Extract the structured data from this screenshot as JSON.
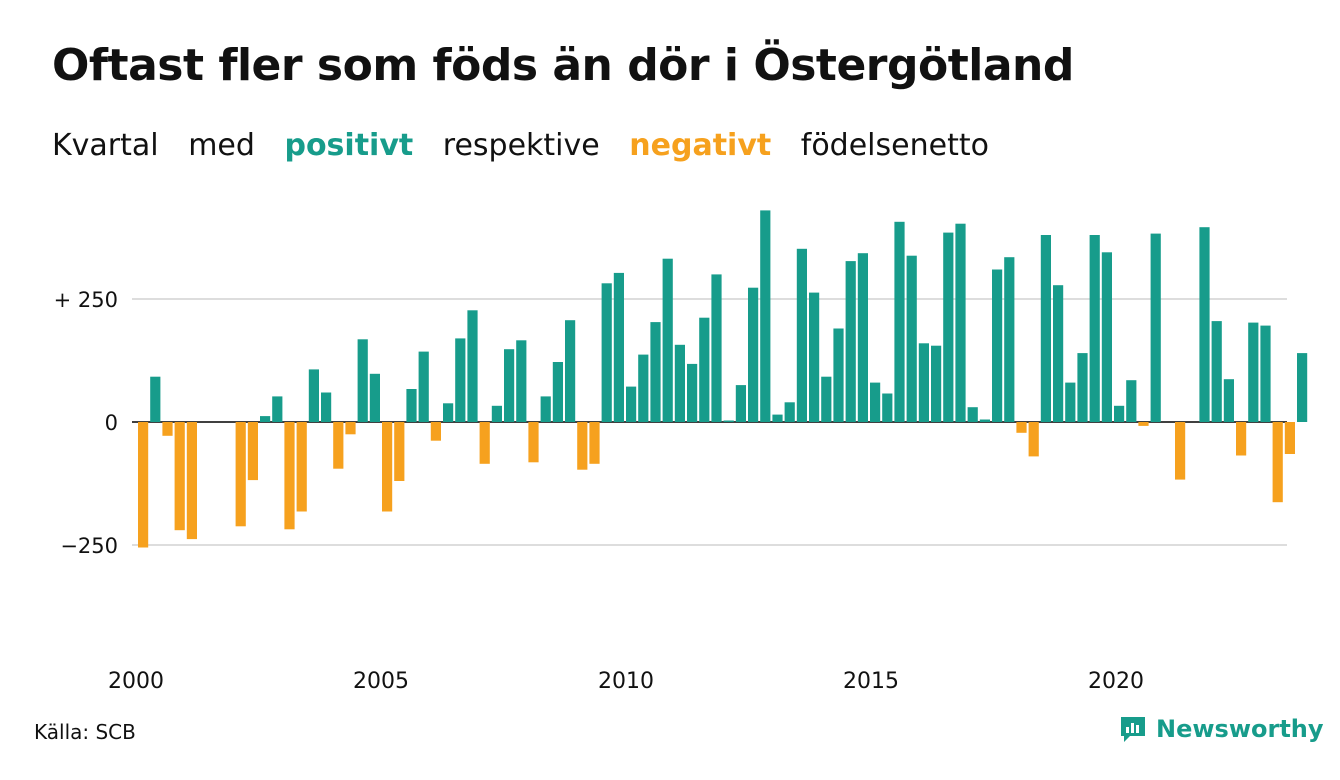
{
  "title": "Oftast fler som föds än dör i Östergötland",
  "subtitle": {
    "w1": "Kvartal",
    "w2": "med",
    "positive_word": "positivt",
    "w3": "respektive",
    "negative_word": "negativt",
    "w4": "födelsenetto"
  },
  "source": "Källa: SCB",
  "logo_text": "Newsworthy",
  "logo_icon": "bar-chart-speech-icon",
  "colors": {
    "positive": "#179c8b",
    "negative": "#f6a11e",
    "grid": "#dddddd",
    "text": "#111111"
  },
  "chart_data": {
    "type": "bar",
    "title": "Oftast fler som föds än dör i Östergötland",
    "xlabel": "",
    "ylabel": "",
    "ylim": [
      -320,
      440
    ],
    "y_ticks": [
      {
        "value": 250,
        "label": "+ 250"
      },
      {
        "value": 0,
        "label": "0"
      },
      {
        "value": -250,
        "label": "−250"
      }
    ],
    "x_ticks": [
      {
        "year": 2000,
        "label": "2000"
      },
      {
        "year": 2005,
        "label": "2005"
      },
      {
        "year": 2010,
        "label": "2010"
      },
      {
        "year": 2015,
        "label": "2015"
      },
      {
        "year": 2020,
        "label": "2020"
      }
    ],
    "start_year": 2000,
    "grid": true,
    "categories": [
      "2000 Q1",
      "2000 Q2",
      "2000 Q3",
      "2000 Q4",
      "2001 Q1",
      "2001 Q2",
      "2001 Q3",
      "2001 Q4",
      "2002 Q1",
      "2002 Q2",
      "2002 Q3",
      "2002 Q4",
      "2003 Q1",
      "2003 Q2",
      "2003 Q3",
      "2003 Q4",
      "2004 Q1",
      "2004 Q2",
      "2004 Q3",
      "2004 Q4",
      "2005 Q1",
      "2005 Q2",
      "2005 Q3",
      "2005 Q4",
      "2006 Q1",
      "2006 Q2",
      "2006 Q3",
      "2006 Q4",
      "2007 Q1",
      "2007 Q2",
      "2007 Q3",
      "2007 Q4",
      "2008 Q1",
      "2008 Q2",
      "2008 Q3",
      "2008 Q4",
      "2009 Q1",
      "2009 Q2",
      "2009 Q3",
      "2009 Q4",
      "2010 Q1",
      "2010 Q2",
      "2010 Q3",
      "2010 Q4",
      "2011 Q1",
      "2011 Q2",
      "2011 Q3",
      "2011 Q4",
      "2012 Q1",
      "2012 Q2",
      "2012 Q3",
      "2012 Q4",
      "2013 Q1",
      "2013 Q2",
      "2013 Q3",
      "2013 Q4",
      "2014 Q1",
      "2014 Q2",
      "2014 Q3",
      "2014 Q4",
      "2015 Q1",
      "2015 Q2",
      "2015 Q3",
      "2015 Q4",
      "2016 Q1",
      "2016 Q2",
      "2016 Q3",
      "2016 Q4",
      "2017 Q1",
      "2017 Q2",
      "2017 Q3",
      "2017 Q4",
      "2018 Q1",
      "2018 Q2",
      "2018 Q3",
      "2018 Q4",
      "2019 Q1",
      "2019 Q2",
      "2019 Q3",
      "2019 Q4",
      "2020 Q1",
      "2020 Q2",
      "2020 Q3",
      "2020 Q4",
      "2021 Q1",
      "2021 Q2",
      "2021 Q3",
      "2021 Q4",
      "2022 Q1",
      "2022 Q2",
      "2022 Q3",
      "2022 Q4",
      "2023 Q1",
      "2023 Q2",
      "2023 Q3",
      "2023 Q4"
    ],
    "values": [
      -255,
      92,
      -28,
      -220,
      -238,
      0,
      0,
      0,
      -212,
      -118,
      12,
      52,
      -218,
      -182,
      107,
      60,
      -95,
      -25,
      168,
      98,
      -182,
      -120,
      67,
      143,
      -38,
      38,
      170,
      227,
      -85,
      33,
      148,
      166,
      -82,
      52,
      122,
      207,
      -97,
      -85,
      282,
      303,
      72,
      137,
      203,
      332,
      157,
      118,
      212,
      300,
      3,
      75,
      273,
      430,
      15,
      40,
      352,
      263,
      92,
      190,
      327,
      343,
      80,
      58,
      407,
      338,
      160,
      155,
      385,
      403,
      30,
      5,
      310,
      335,
      -22,
      -70,
      380,
      278,
      80,
      140,
      380,
      345,
      33,
      85,
      -8,
      383,
      0,
      -117,
      0,
      396,
      205,
      87,
      -68,
      202,
      196,
      -163,
      -65,
      140
    ]
  }
}
